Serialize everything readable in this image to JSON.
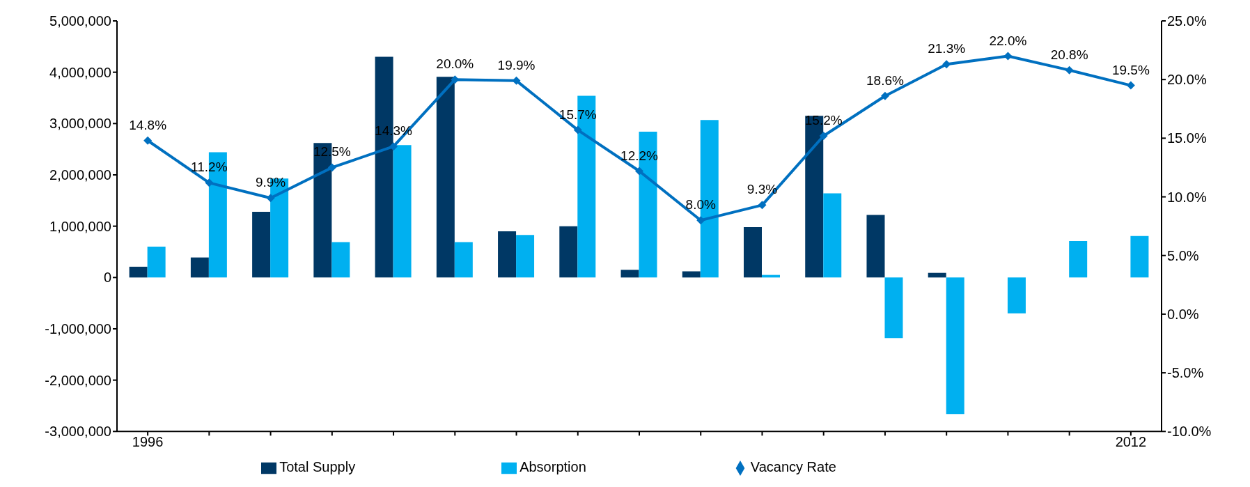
{
  "chart_data": {
    "type": "bar",
    "categories": [
      "1996",
      null,
      null,
      null,
      null,
      null,
      null,
      null,
      null,
      null,
      null,
      null,
      null,
      null,
      null,
      null,
      "2012"
    ],
    "series": [
      {
        "name": "Total Supply",
        "color": "#003865",
        "values": [
          210000,
          390000,
          1280000,
          2620000,
          4300000,
          3910000,
          900000,
          1000000,
          150000,
          120000,
          980000,
          3150000,
          1220000,
          90000,
          0,
          0,
          0
        ]
      },
      {
        "name": "Absorption",
        "color": "#00b0f0",
        "values": [
          600000,
          2440000,
          1930000,
          690000,
          2580000,
          690000,
          830000,
          3540000,
          2840000,
          3070000,
          50000,
          1640000,
          -1180000,
          -2660000,
          -700000,
          710000,
          810000
        ]
      },
      {
        "name": "Vacancy Rate",
        "type": "line",
        "axis": "y2",
        "color": "#0070c0",
        "marker": "diamond",
        "values": [
          14.8,
          11.2,
          9.9,
          12.5,
          14.3,
          20.0,
          19.9,
          15.7,
          12.2,
          8.0,
          9.3,
          15.2,
          18.6,
          21.3,
          22.0,
          20.8,
          19.5
        ],
        "value_labels": [
          "14.8%",
          "11.2%",
          "9.9%",
          "12.5%",
          "14.3%",
          "20.0%",
          "19.9%",
          "15.7%",
          "12.2%",
          "8.0%",
          "9.3%",
          "15.2%",
          "18.6%",
          "21.3%",
          "22.0%",
          "20.8%",
          "19.5%"
        ]
      }
    ],
    "ylim": [
      -3000000,
      5000000
    ],
    "yticks": [
      {
        "value": -3000000,
        "label": "-3,000,000"
      },
      {
        "value": -2000000,
        "label": "-2,000,000"
      },
      {
        "value": -1000000,
        "label": "-1,000,000"
      },
      0,
      {
        "value": 1000000,
        "label": "1,000,000"
      },
      {
        "value": 2000000,
        "label": "2,000,000"
      },
      {
        "value": 3000000,
        "label": "3,000,000"
      },
      {
        "value": 4000000,
        "label": "4,000,000"
      },
      {
        "value": 5000000,
        "label": "5,000,000"
      }
    ],
    "y2lim": [
      -10,
      25
    ],
    "y2ticks": [
      {
        "value": -10,
        "label": "-10.0%"
      },
      {
        "value": -5,
        "label": "-5.0%"
      },
      {
        "value": 0,
        "label": "0.0%"
      },
      {
        "value": 5,
        "label": "5.0%"
      },
      {
        "value": 10,
        "label": "10.0%"
      },
      {
        "value": 15,
        "label": "15.0%"
      },
      {
        "value": 20,
        "label": "20.0%"
      },
      {
        "value": 25,
        "label": "25.0%"
      }
    ],
    "grid": false,
    "legend": "bottom"
  }
}
